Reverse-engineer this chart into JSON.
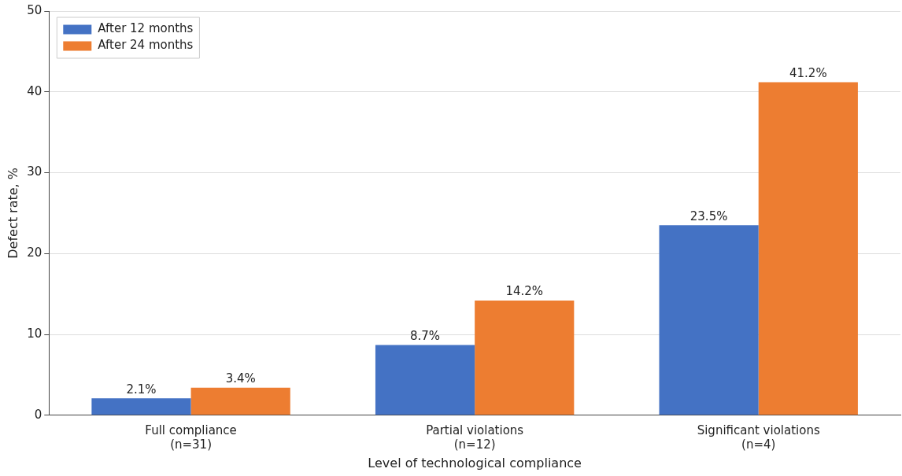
{
  "chart_data": {
    "type": "bar",
    "xlabel": "Level of technological compliance",
    "ylabel": "Defect rate, %",
    "categories": [
      "Full compliance\n(n=31)",
      "Partial violations\n(n=12)",
      "Significant violations\n(n=4)"
    ],
    "series": [
      {
        "name": "After 12 months",
        "color": "#4472c4",
        "values": [
          2.1,
          8.7,
          23.5
        ],
        "value_labels": [
          "2.1%",
          "8.7%",
          "23.5%"
        ]
      },
      {
        "name": "After 24 months",
        "color": "#ed7d31",
        "values": [
          3.4,
          14.2,
          41.2
        ],
        "value_labels": [
          "3.4%",
          "14.2%",
          "41.2%"
        ]
      }
    ],
    "ylim": [
      0,
      50
    ],
    "yticks": [
      0,
      10,
      20,
      30,
      40,
      50
    ],
    "grid": "y",
    "legend": "top left"
  }
}
